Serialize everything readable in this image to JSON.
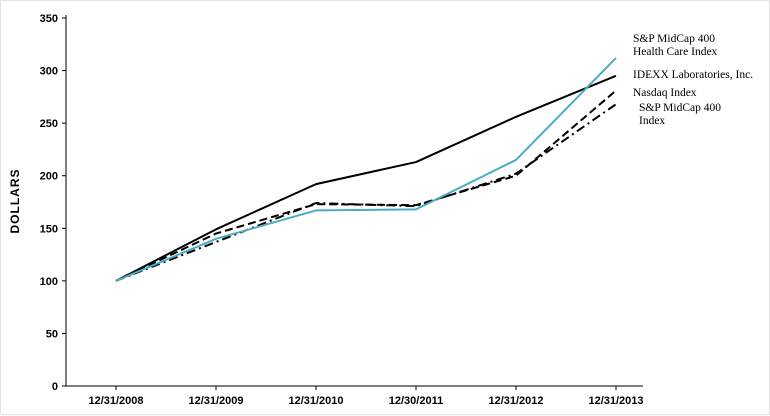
{
  "chart_data": {
    "type": "line",
    "title": "",
    "xlabel": "",
    "ylabel": "DOLLARS",
    "ylim": [
      0,
      350
    ],
    "yticks": [
      0,
      50,
      100,
      150,
      200,
      250,
      300,
      350
    ],
    "grid": false,
    "legend_position": "right-annotations",
    "categories": [
      "12/31/2008",
      "12/31/2009",
      "12/31/2010",
      "12/30/2011",
      "12/31/2012",
      "12/31/2013"
    ],
    "series": [
      {
        "id": "idexx",
        "name": "IDEXX Laboratories, Inc.",
        "color": "#000000",
        "style": "solid",
        "values": [
          100,
          149,
          192,
          213,
          256,
          295
        ]
      },
      {
        "id": "nasdaq",
        "name": "Nasdaq Index",
        "color": "#000000",
        "style": "dashed",
        "values": [
          100,
          145,
          173,
          172,
          200,
          281
        ]
      },
      {
        "id": "sp-midcap",
        "name": "S&P MidCap 400 Index",
        "color": "#000000",
        "style": "dashdot",
        "values": [
          100,
          137,
          174,
          171,
          202,
          268
        ]
      },
      {
        "id": "sp-midcap-healthcare",
        "name": "S&P MidCap 400 Health Care Index",
        "color": "#4BACC6",
        "style": "solid",
        "values": [
          100,
          140,
          167,
          168,
          215,
          312
        ]
      }
    ],
    "annotations": [
      {
        "text": "S&P MidCap 400\nHealth Care Index"
      },
      {
        "text": "IDEXX Laboratories, Inc."
      },
      {
        "text": "Nasdaq Index"
      },
      {
        "text": "S&P MidCap 400\n Index"
      }
    ]
  }
}
